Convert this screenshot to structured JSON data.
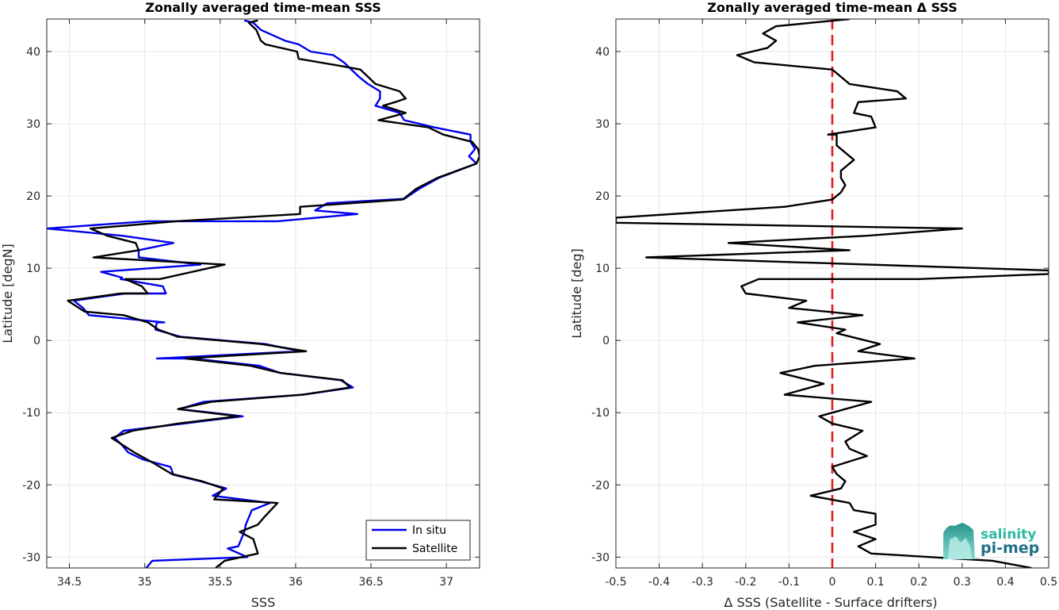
{
  "chart_data": [
    {
      "type": "line",
      "title": "Zonally averaged time-mean SSS",
      "xlabel": "SSS",
      "ylabel": "Latitude [degN]",
      "xlim": [
        34.35,
        37.22
      ],
      "ylim": [
        -31.5,
        44.5
      ],
      "xticks": [
        34.5,
        35,
        35.5,
        36,
        36.5,
        37
      ],
      "xtick_labels": [
        "34.5",
        "35",
        "35.5",
        "36",
        "36.5",
        "37"
      ],
      "yticks": [
        -30,
        -20,
        -10,
        0,
        10,
        20,
        30,
        40
      ],
      "ytick_labels": [
        "-30",
        "-20",
        "-10",
        "0",
        "10",
        "20",
        "30",
        "40"
      ],
      "grid": true,
      "legend_position": "bottom-right",
      "series": [
        {
          "name": "In situ",
          "color": "#0000ee",
          "points": [
            [
              35.01,
              -31.5
            ],
            [
              35.05,
              -30.5
            ],
            [
              35.68,
              -30.0
            ],
            [
              35.55,
              -28.8
            ],
            [
              35.62,
              -28.5
            ],
            [
              35.66,
              -26.5
            ],
            [
              35.67,
              -25.5
            ],
            [
              35.71,
              -23.5
            ],
            [
              35.83,
              -22.5
            ],
            [
              35.45,
              -21.5
            ],
            [
              35.54,
              -20.5
            ],
            [
              35.37,
              -19.5
            ],
            [
              35.19,
              -18.6
            ],
            [
              35.17,
              -17.5
            ],
            [
              34.99,
              -16.5
            ],
            [
              34.89,
              -15.5
            ],
            [
              34.85,
              -14.5
            ],
            [
              34.8,
              -13.5
            ],
            [
              34.86,
              -12.5
            ],
            [
              35.26,
              -11.5
            ],
            [
              35.65,
              -10.5
            ],
            [
              35.23,
              -9.5
            ],
            [
              35.39,
              -8.5
            ],
            [
              36.05,
              -7.5
            ],
            [
              36.38,
              -6.5
            ],
            [
              36.3,
              -5.5
            ],
            [
              35.9,
              -4.5
            ],
            [
              35.76,
              -3.5
            ],
            [
              35.31,
              -2.5
            ],
            [
              35.08,
              -2.5
            ],
            [
              36.03,
              -1.5
            ],
            [
              35.8,
              -0.5
            ],
            [
              35.24,
              0.5
            ],
            [
              35.07,
              1.5
            ],
            [
              35.08,
              2.5
            ],
            [
              35.13,
              2.5
            ],
            [
              34.63,
              3.5
            ],
            [
              34.59,
              4.5
            ],
            [
              34.53,
              5.5
            ],
            [
              34.87,
              6.5
            ],
            [
              35.14,
              6.5
            ],
            [
              35.12,
              7.5
            ],
            [
              34.84,
              8.5
            ],
            [
              34.85,
              8.7
            ],
            [
              34.71,
              9.5
            ],
            [
              35.37,
              10.5
            ],
            [
              34.96,
              11.5
            ],
            [
              34.96,
              12.5
            ],
            [
              35.19,
              13.5
            ],
            [
              34.85,
              14.5
            ],
            [
              34.35,
              15.5
            ],
            [
              35.02,
              16.5
            ],
            [
              35.88,
              16.5
            ],
            [
              36.41,
              17.5
            ],
            [
              36.13,
              18.0
            ],
            [
              36.21,
              19.0
            ],
            [
              36.72,
              19.6
            ],
            [
              36.82,
              21.0
            ],
            [
              36.95,
              22.5
            ],
            [
              37.2,
              24.5
            ],
            [
              37.15,
              25.5
            ],
            [
              37.19,
              26.5
            ],
            [
              37.16,
              27.5
            ],
            [
              37.16,
              28.5
            ],
            [
              36.92,
              29.5
            ],
            [
              36.72,
              30.5
            ],
            [
              36.69,
              31.5
            ],
            [
              36.53,
              32.5
            ],
            [
              36.56,
              33.5
            ],
            [
              36.56,
              34.5
            ],
            [
              36.48,
              35.5
            ],
            [
              36.42,
              36.5
            ],
            [
              36.37,
              37.5
            ],
            [
              36.32,
              38.5
            ],
            [
              36.25,
              39.5
            ],
            [
              36.1,
              40.0
            ],
            [
              36.02,
              41.0
            ],
            [
              35.93,
              41.5
            ],
            [
              35.77,
              43.0
            ],
            [
              35.72,
              44.0
            ],
            [
              35.66,
              44.3
            ]
          ]
        },
        {
          "name": "Satellite",
          "color": "#000000",
          "points": [
            [
              35.47,
              -31.5
            ],
            [
              35.53,
              -30.5
            ],
            [
              35.75,
              -29.5
            ],
            [
              35.72,
              -27.5
            ],
            [
              35.63,
              -26.5
            ],
            [
              35.75,
              -25.5
            ],
            [
              35.79,
              -24.5
            ],
            [
              35.88,
              -22.5
            ],
            [
              35.46,
              -22.0
            ],
            [
              35.52,
              -20.5
            ],
            [
              35.38,
              -19.5
            ],
            [
              35.18,
              -18.5
            ],
            [
              35.06,
              -17.0
            ],
            [
              34.93,
              -15.5
            ],
            [
              34.78,
              -13.5
            ],
            [
              34.92,
              -12.5
            ],
            [
              35.22,
              -11.5
            ],
            [
              35.62,
              -10.5
            ],
            [
              35.22,
              -9.5
            ],
            [
              35.44,
              -8.5
            ],
            [
              36.05,
              -7.5
            ],
            [
              36.36,
              -6.5
            ],
            [
              36.31,
              -5.5
            ],
            [
              35.9,
              -4.5
            ],
            [
              35.7,
              -3.5
            ],
            [
              35.27,
              -2.5
            ],
            [
              36.07,
              -1.5
            ],
            [
              35.77,
              -0.5
            ],
            [
              35.22,
              0.5
            ],
            [
              35.09,
              1.5
            ],
            [
              35.02,
              2.5
            ],
            [
              34.86,
              3.5
            ],
            [
              34.6,
              4.0
            ],
            [
              34.49,
              5.5
            ],
            [
              34.84,
              6.5
            ],
            [
              35.02,
              6.5
            ],
            [
              34.98,
              7.5
            ],
            [
              34.87,
              8.5
            ],
            [
              35.1,
              8.5
            ],
            [
              35.53,
              10.5
            ],
            [
              34.66,
              11.5
            ],
            [
              34.96,
              12.5
            ],
            [
              34.94,
              13.5
            ],
            [
              34.75,
              14.5
            ],
            [
              34.64,
              15.5
            ],
            [
              35.21,
              16.5
            ],
            [
              36.03,
              17.5
            ],
            [
              36.03,
              18.5
            ],
            [
              36.71,
              19.5
            ],
            [
              36.8,
              21.0
            ],
            [
              36.94,
              22.5
            ],
            [
              37.2,
              24.5
            ],
            [
              37.22,
              25.5
            ],
            [
              37.21,
              26.5
            ],
            [
              37.17,
              27.5
            ],
            [
              36.98,
              28.5
            ],
            [
              36.88,
              29.5
            ],
            [
              36.55,
              30.5
            ],
            [
              36.73,
              31.5
            ],
            [
              36.58,
              32.5
            ],
            [
              36.66,
              33.0
            ],
            [
              36.73,
              33.5
            ],
            [
              36.69,
              34.5
            ],
            [
              36.53,
              35.5
            ],
            [
              36.48,
              36.5
            ],
            [
              36.43,
              37.5
            ],
            [
              36.3,
              38.0
            ],
            [
              36.02,
              39.0
            ],
            [
              36.01,
              40.0
            ],
            [
              35.8,
              41.0
            ],
            [
              35.77,
              41.5
            ],
            [
              35.74,
              43.0
            ],
            [
              35.69,
              44.0
            ],
            [
              35.75,
              44.3
            ]
          ]
        }
      ]
    },
    {
      "type": "line",
      "title": "Zonally averaged time-mean Δ SSS",
      "xlabel": "Δ SSS (Satellite - Surface drifters)",
      "ylabel": "Latitude [deg]",
      "xlim": [
        -0.5,
        0.5
      ],
      "ylim": [
        -31.5,
        44.5
      ],
      "xticks": [
        -0.5,
        -0.4,
        -0.3,
        -0.2,
        -0.1,
        0,
        0.1,
        0.2,
        0.3,
        0.4,
        0.5
      ],
      "xtick_labels": [
        "-0.5",
        "-0.4",
        "-0.3",
        "-0.2",
        "-0.1",
        "0",
        "0.1",
        "0.2",
        "0.3",
        "0.4",
        "0.5"
      ],
      "yticks": [
        -30,
        -20,
        -10,
        0,
        10,
        20,
        30,
        40
      ],
      "ytick_labels": [
        "-30",
        "-20",
        "-10",
        "0",
        "10",
        "20",
        "30",
        "40"
      ],
      "grid": true,
      "reference_line": {
        "x": 0,
        "color": "#e31a1c",
        "style": "dashed"
      },
      "series": [
        {
          "color": "#000000",
          "points": [
            [
              0.46,
              -31.5
            ],
            [
              0.37,
              -30.5
            ],
            [
              0.09,
              -29.5
            ],
            [
              0.06,
              -28.5
            ],
            [
              0.1,
              -27.5
            ],
            [
              0.05,
              -26.5
            ],
            [
              0.1,
              -25.5
            ],
            [
              0.1,
              -24.0
            ],
            [
              0.05,
              -23.5
            ],
            [
              0.04,
              -22.5
            ],
            [
              -0.05,
              -21.5
            ],
            [
              0.02,
              -20.5
            ],
            [
              0.03,
              -19.5
            ],
            [
              0.01,
              -18.5
            ],
            [
              0.0,
              -17.5
            ],
            [
              0.08,
              -16.0
            ],
            [
              0.04,
              -15.0
            ],
            [
              0.03,
              -14.0
            ],
            [
              0.07,
              -12.5
            ],
            [
              0.0,
              -11.5
            ],
            [
              -0.03,
              -10.5
            ],
            [
              0.09,
              -8.5
            ],
            [
              -0.11,
              -7.5
            ],
            [
              -0.02,
              -6.0
            ],
            [
              -0.12,
              -4.5
            ],
            [
              -0.04,
              -3.5
            ],
            [
              0.19,
              -2.5
            ],
            [
              0.06,
              -1.5
            ],
            [
              0.11,
              -0.5
            ],
            [
              0.01,
              1.0
            ],
            [
              0.03,
              1.5
            ],
            [
              -0.08,
              2.5
            ],
            [
              0.07,
              3.5
            ],
            [
              -0.1,
              4.5
            ],
            [
              -0.06,
              5.5
            ],
            [
              -0.2,
              6.5
            ],
            [
              -0.21,
              7.5
            ],
            [
              -0.17,
              8.5
            ],
            [
              0.2,
              8.5
            ],
            [
              0.5,
              9.2
            ],
            [
              0.5,
              9.7
            ],
            [
              -0.43,
              11.5
            ],
            [
              0.04,
              12.5
            ],
            [
              -0.24,
              13.5
            ],
            [
              0.08,
              14.5
            ],
            [
              0.3,
              15.5
            ],
            [
              -0.5,
              16.3
            ],
            [
              -0.5,
              17.0
            ],
            [
              -0.11,
              18.5
            ],
            [
              0.0,
              19.5
            ],
            [
              0.02,
              20.5
            ],
            [
              0.03,
              21.5
            ],
            [
              0.02,
              22.5
            ],
            [
              0.02,
              23.5
            ],
            [
              0.05,
              25.0
            ],
            [
              0.03,
              26.0
            ],
            [
              0.01,
              27.0
            ],
            [
              0.01,
              28.5
            ],
            [
              -0.01,
              28.5
            ],
            [
              0.1,
              29.5
            ],
            [
              0.09,
              31.0
            ],
            [
              0.05,
              31.5
            ],
            [
              0.06,
              33.0
            ],
            [
              0.17,
              33.5
            ],
            [
              0.15,
              34.5
            ],
            [
              0.04,
              35.5
            ],
            [
              0.0,
              37.5
            ],
            [
              -0.18,
              38.5
            ],
            [
              -0.22,
              39.5
            ],
            [
              -0.15,
              40.5
            ],
            [
              -0.13,
              41.5
            ],
            [
              -0.16,
              42.5
            ],
            [
              -0.13,
              43.5
            ],
            [
              0.04,
              44.5
            ]
          ]
        }
      ]
    }
  ],
  "legend": {
    "entries": [
      {
        "label": "In situ",
        "color": "#0000ee"
      },
      {
        "label": "Satellite",
        "color": "#000000"
      }
    ]
  },
  "logo": {
    "line1": "salinity",
    "line2": "pi-mep"
  }
}
